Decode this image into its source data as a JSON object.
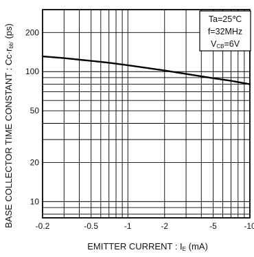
{
  "chart_data": {
    "type": "line",
    "xscale": "log",
    "yscale": "log",
    "xlim": [
      0.2,
      10
    ],
    "ylim": [
      7.5,
      300
    ],
    "x_ticks": [
      {
        "value": 0.2,
        "label": "-0.2"
      },
      {
        "value": 0.5,
        "label": "-0.5"
      },
      {
        "value": 1,
        "label": "-1"
      },
      {
        "value": 2,
        "label": "-2"
      },
      {
        "value": 5,
        "label": "-5"
      },
      {
        "value": 10,
        "label": "-10"
      }
    ],
    "y_ticks": [
      {
        "value": 10,
        "label": "10"
      },
      {
        "value": 20,
        "label": "20"
      },
      {
        "value": 50,
        "label": "50"
      },
      {
        "value": 100,
        "label": "100"
      },
      {
        "value": 200,
        "label": "200"
      }
    ],
    "xlabel": {
      "main": "EMITTER  CURRENT : I",
      "sub": "E",
      "unit": " (mA)"
    },
    "ylabel": {
      "main": "BASE COLLECTOR TIME CONSTANT : Cc·r",
      "sub": "bb'",
      "unit": " (ps)"
    },
    "grid": true,
    "conditions": {
      "ta": "Ta=25℃",
      "freq": "f=32MHz",
      "vcb_main": "V",
      "vcb_sub": "CB",
      "vcb_value": "=6V"
    },
    "series": [
      {
        "x": [
          0.2,
          0.3,
          0.5,
          0.7,
          1,
          2,
          3,
          5,
          7,
          10
        ],
        "values": [
          131,
          127,
          121,
          117,
          112,
          102,
          96,
          89,
          85,
          80
        ]
      }
    ]
  }
}
